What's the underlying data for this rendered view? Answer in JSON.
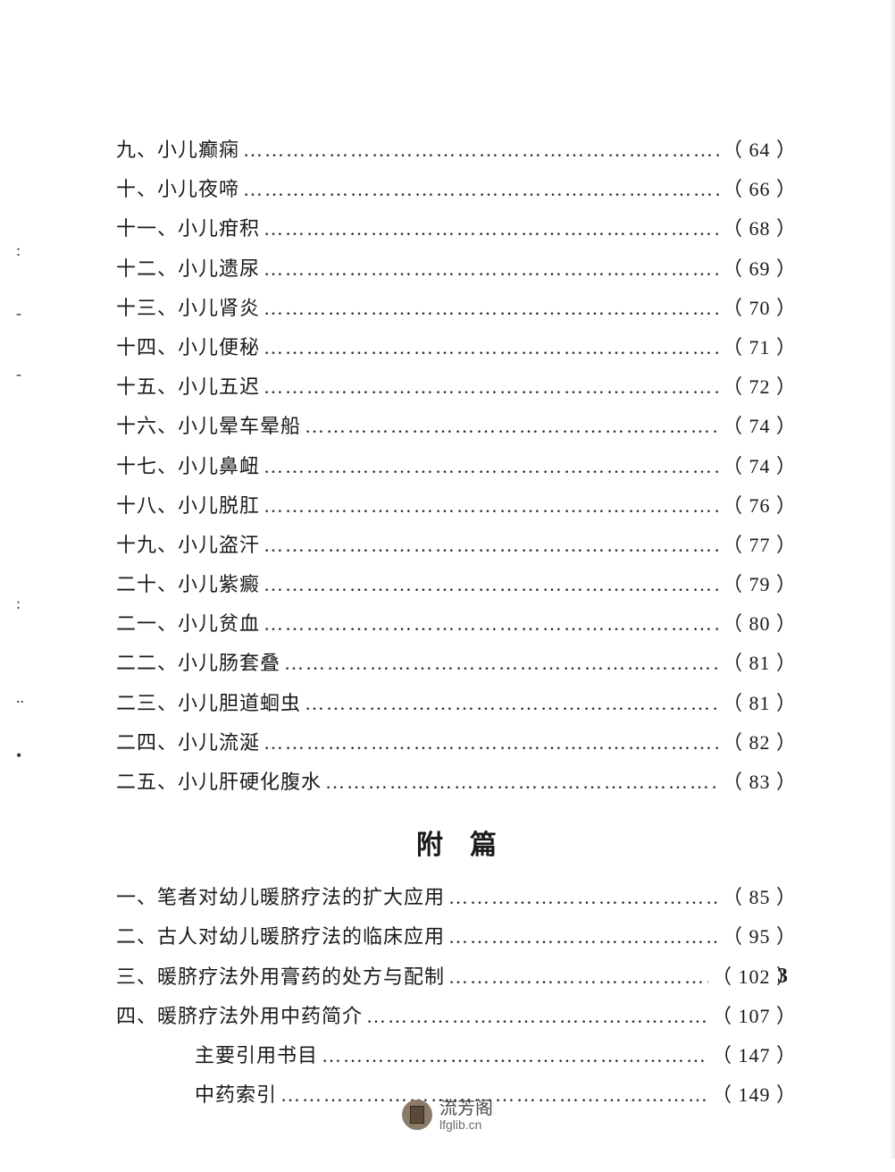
{
  "text_color": "#1a1a1a",
  "background_color": "#ffffff",
  "font_family": "SimSun",
  "body_fontsize": 22,
  "heading_fontsize": 30,
  "toc_section1": [
    {
      "label": "九、小儿癫痫",
      "page": "（ 64 ）"
    },
    {
      "label": "十、小儿夜啼",
      "page": "（ 66 ）"
    },
    {
      "label": "十一、小儿疳积",
      "page": "（ 68 ）"
    },
    {
      "label": "十二、小儿遗尿",
      "page": "（ 69 ）"
    },
    {
      "label": "十三、小儿肾炎",
      "page": "（ 70 ）"
    },
    {
      "label": "十四、小儿便秘",
      "page": "（ 71 ）"
    },
    {
      "label": "十五、小儿五迟",
      "page": "（ 72 ）"
    },
    {
      "label": "十六、小儿晕车晕船",
      "page": "（ 74 ）"
    },
    {
      "label": "十七、小儿鼻衄",
      "page": "（ 74 ）"
    },
    {
      "label": "十八、小儿脱肛",
      "page": "（ 76 ）"
    },
    {
      "label": "十九、小儿盗汗",
      "page": "（ 77 ）"
    },
    {
      "label": "二十、小儿紫癜",
      "page": "（ 79 ）"
    },
    {
      "label": "二一、小儿贫血",
      "page": "（ 80 ）"
    },
    {
      "label": "二二、小儿肠套叠",
      "page": "（ 81 ）"
    },
    {
      "label": "二三、小儿胆道蛔虫",
      "page": "（ 81 ）"
    },
    {
      "label": "二四、小儿流涎",
      "page": "（ 82 ）"
    },
    {
      "label": "二五、小儿肝硬化腹水",
      "page": "（ 83 ）"
    }
  ],
  "section_heading": "附篇",
  "toc_section2": [
    {
      "label": "一、笔者对幼儿暖脐疗法的扩大应用",
      "page": "（ 85 ）",
      "indent": false
    },
    {
      "label": "二、古人对幼儿暖脐疗法的临床应用",
      "page": "（ 95 ）",
      "indent": false
    },
    {
      "label": "三、暖脐疗法外用膏药的处方与配制",
      "page": "（ 102 ）",
      "indent": false
    },
    {
      "label": "四、暖脐疗法外用中药简介",
      "page": "（ 107 ）",
      "indent": false
    },
    {
      "label": "主要引用书目",
      "page": "（ 147 ）",
      "indent": true
    },
    {
      "label": "中药索引",
      "page": "（ 149 ）",
      "indent": true
    }
  ],
  "page_number": "3",
  "watermark": {
    "title": "流芳阁",
    "url": "lfglib.cn"
  },
  "dots_fill": "………………………………………………………………………………"
}
